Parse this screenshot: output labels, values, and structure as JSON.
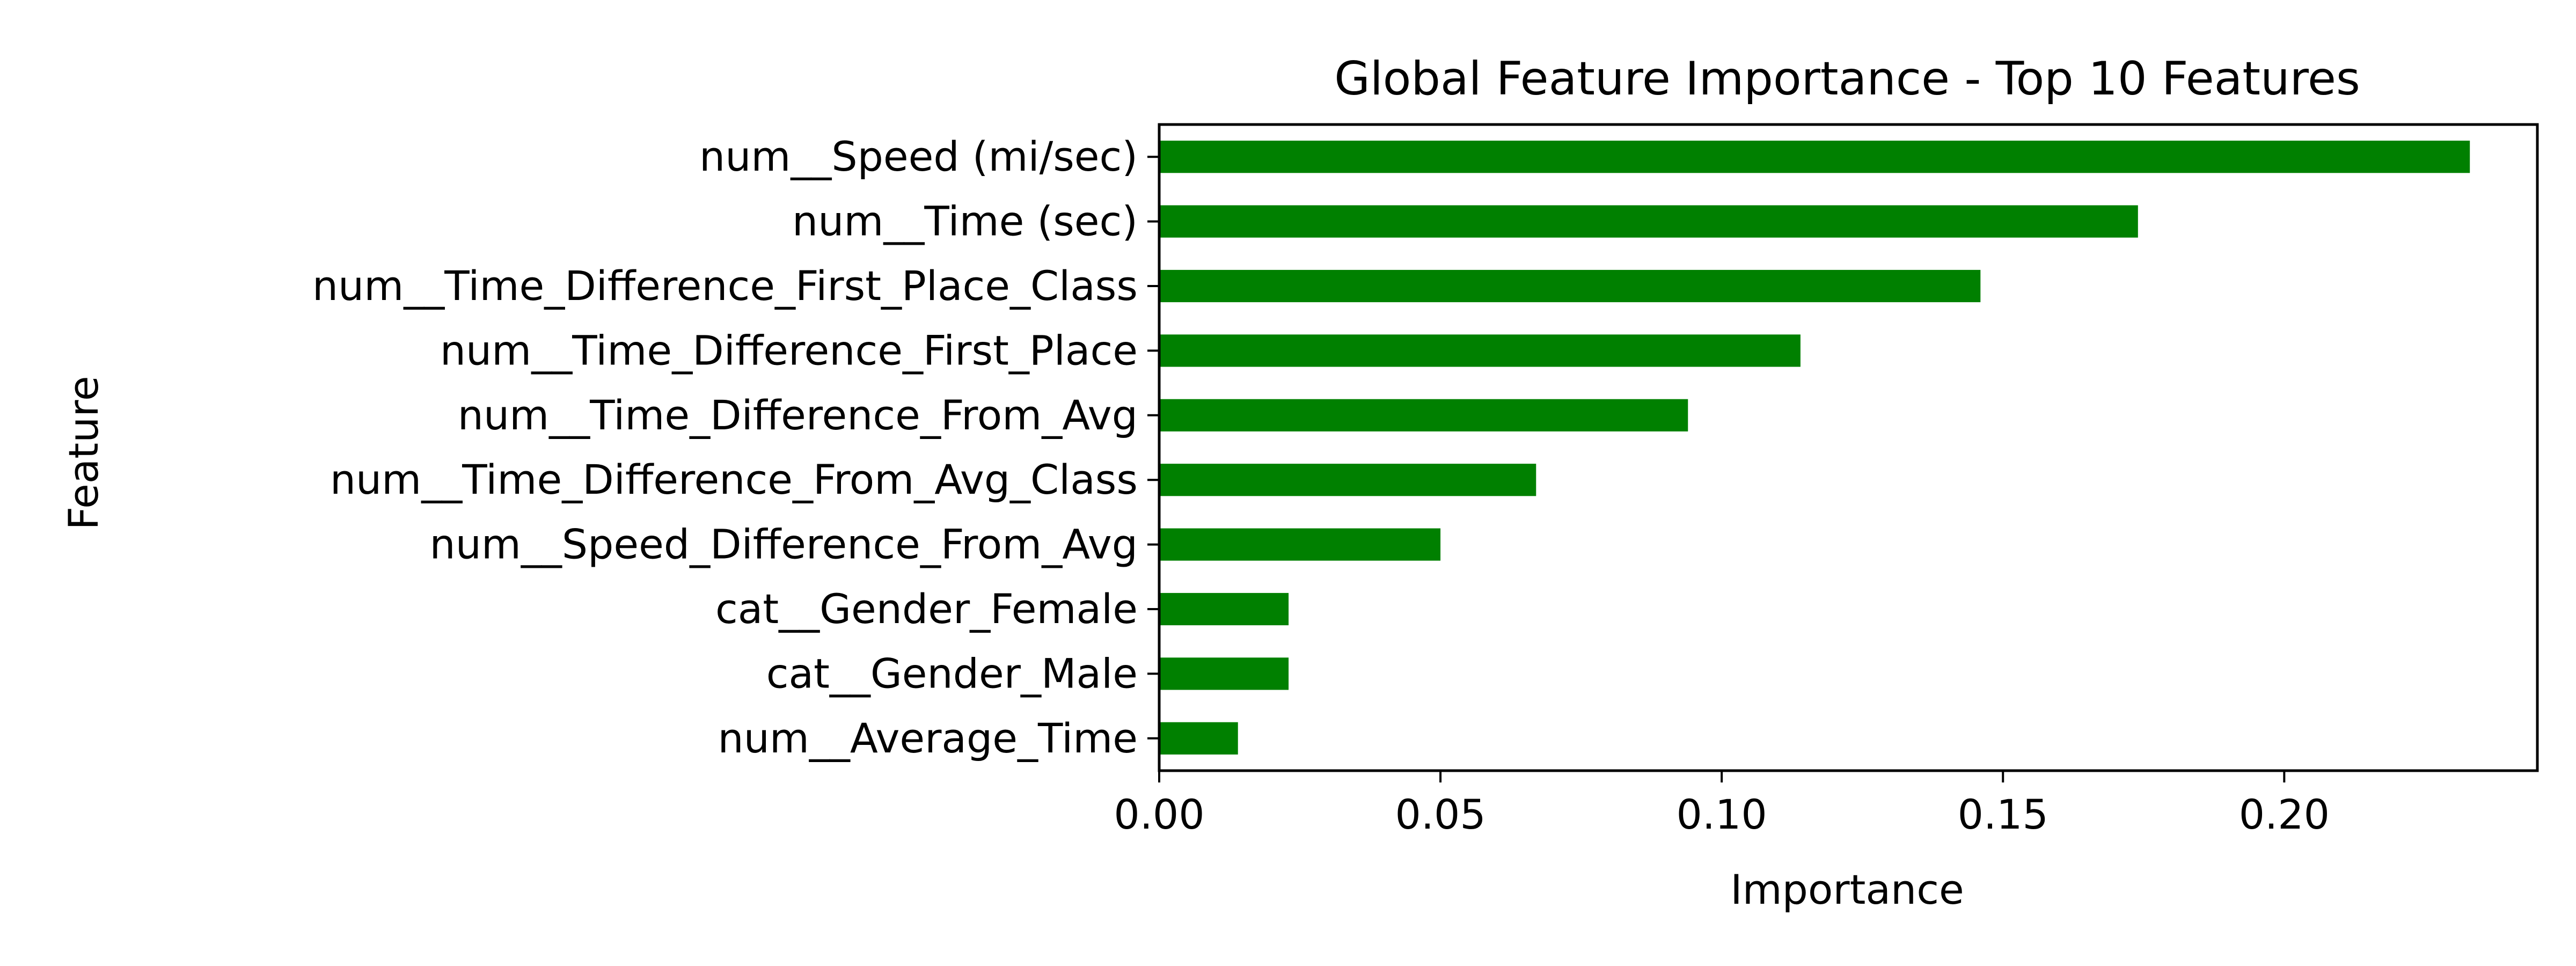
{
  "chart_data": {
    "type": "bar",
    "orientation": "horizontal",
    "title": "Global Feature Importance - Top 10 Features",
    "xlabel": "Importance",
    "ylabel": "Feature",
    "categories": [
      "num__Speed (mi/sec)",
      "num__Time (sec)",
      "num__Time_Difference_First_Place_Class",
      "num__Time_Difference_First_Place",
      "num__Time_Difference_From_Avg",
      "num__Time_Difference_From_Avg_Class",
      "num__Speed_Difference_From_Avg",
      "cat__Gender_Female",
      "cat__Gender_Male",
      "num__Average_Time"
    ],
    "values": [
      0.233,
      0.174,
      0.146,
      0.114,
      0.094,
      0.067,
      0.05,
      0.023,
      0.023,
      0.014
    ],
    "xlim": [
      0,
      0.245
    ],
    "xticks": [
      0.0,
      0.05,
      0.1,
      0.15,
      0.2
    ],
    "xtick_labels": [
      "0.00",
      "0.05",
      "0.10",
      "0.15",
      "0.20"
    ],
    "bar_color": "#008000",
    "grid": false,
    "legend": "none"
  }
}
